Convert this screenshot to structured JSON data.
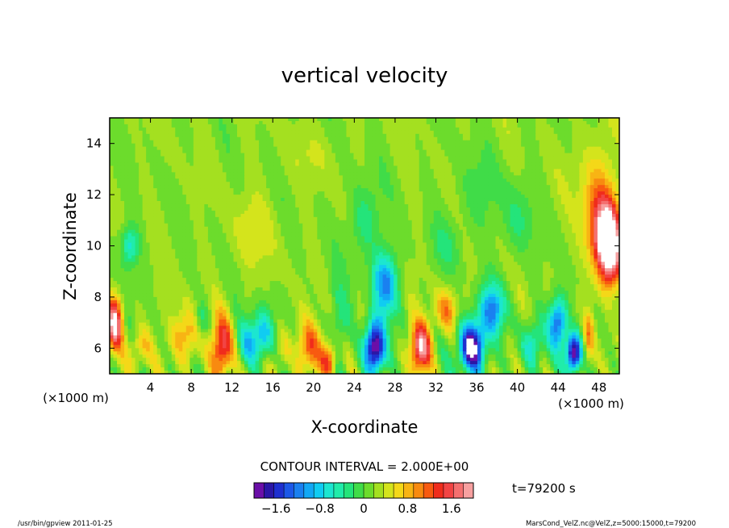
{
  "chart_data": {
    "type": "heatmap",
    "title": "vertical velocity",
    "xlabel": "X-coordinate",
    "ylabel": "Z-coordinate",
    "x_unit": "(×1000 m)",
    "y_unit": "(×1000 m)",
    "xlim": [
      0,
      50
    ],
    "ylim": [
      5,
      15
    ],
    "xticks": [
      4,
      8,
      12,
      16,
      20,
      24,
      28,
      32,
      36,
      40,
      44,
      48
    ],
    "yticks": [
      6,
      8,
      10,
      12,
      14
    ],
    "contour_interval_text": "CONTOUR INTERVAL = 2.000E+00",
    "time_text": "t=79200 s",
    "colorbar": {
      "range": [
        -2.0,
        2.0
      ],
      "ticks": [
        -1.6,
        -0.8,
        0,
        0.8,
        1.6
      ],
      "tick_labels": [
        "−1.6",
        "−0.8",
        "0",
        "0.8",
        "1.6"
      ],
      "colors": [
        "#6b0fa8",
        "#2b16a6",
        "#1e2fd0",
        "#1c58e8",
        "#1a80f0",
        "#12a8f5",
        "#10ccf2",
        "#1ce6d0",
        "#20ecaa",
        "#24e47a",
        "#40dc48",
        "#6cdc2c",
        "#a4e020",
        "#d4e41c",
        "#f4d818",
        "#f8b414",
        "#f88a10",
        "#f85a10",
        "#f02c1c",
        "#f24444",
        "#f47070",
        "#f7a0a0"
      ]
    },
    "field_features": [
      {
        "x": 49.0,
        "z": 10.0,
        "w": 2.5,
        "h": 3.0,
        "value": 2.4
      },
      {
        "x": 48.0,
        "z": 11.0,
        "w": 3.0,
        "h": 3.5,
        "value": 1.0
      },
      {
        "x": 47.5,
        "z": 13.0,
        "w": 4.0,
        "h": 3.0,
        "value": 0.3
      },
      {
        "x": 2.0,
        "z": 10.0,
        "w": 1.8,
        "h": 1.5,
        "value": -0.8
      },
      {
        "x": 0.5,
        "z": 7.0,
        "w": 1.5,
        "h": 2.0,
        "value": 1.8
      },
      {
        "x": 3.0,
        "z": 6.0,
        "w": 2.0,
        "h": 1.5,
        "value": 0.6
      },
      {
        "x": 7.5,
        "z": 6.5,
        "w": 3.0,
        "h": 2.0,
        "value": 0.8
      },
      {
        "x": 9.0,
        "z": 7.0,
        "w": 1.5,
        "h": 1.5,
        "value": -0.6
      },
      {
        "x": 11.0,
        "z": 6.0,
        "w": 2.0,
        "h": 2.5,
        "value": 1.4
      },
      {
        "x": 13.5,
        "z": 6.2,
        "w": 2.0,
        "h": 1.8,
        "value": -0.8
      },
      {
        "x": 15.0,
        "z": 6.5,
        "w": 2.0,
        "h": 2.0,
        "value": -1.1
      },
      {
        "x": 17.0,
        "z": 6.0,
        "w": 1.5,
        "h": 1.5,
        "value": 0.4
      },
      {
        "x": 19.5,
        "z": 6.0,
        "w": 2.5,
        "h": 2.0,
        "value": 1.0
      },
      {
        "x": 21.5,
        "z": 5.5,
        "w": 1.5,
        "h": 1.5,
        "value": 1.2
      },
      {
        "x": 22.5,
        "z": 7.0,
        "w": 2.0,
        "h": 3.0,
        "value": -0.5
      },
      {
        "x": 26.0,
        "z": 6.0,
        "w": 2.0,
        "h": 2.0,
        "value": -2.4
      },
      {
        "x": 27.0,
        "z": 8.5,
        "w": 2.5,
        "h": 2.5,
        "value": -1.3
      },
      {
        "x": 25.0,
        "z": 11.0,
        "w": 3.0,
        "h": 3.0,
        "value": -0.5
      },
      {
        "x": 30.5,
        "z": 6.0,
        "w": 2.0,
        "h": 2.0,
        "value": 1.8
      },
      {
        "x": 33.0,
        "z": 7.5,
        "w": 2.0,
        "h": 1.5,
        "value": 0.8
      },
      {
        "x": 35.5,
        "z": 6.0,
        "w": 2.5,
        "h": 2.0,
        "value": -2.4
      },
      {
        "x": 37.5,
        "z": 7.5,
        "w": 2.5,
        "h": 2.0,
        "value": -1.3
      },
      {
        "x": 41.5,
        "z": 6.2,
        "w": 2.0,
        "h": 1.8,
        "value": -0.8
      },
      {
        "x": 44.0,
        "z": 7.0,
        "w": 1.8,
        "h": 2.0,
        "value": -1.6
      },
      {
        "x": 45.5,
        "z": 5.8,
        "w": 1.5,
        "h": 1.5,
        "value": -2.4
      },
      {
        "x": 47.0,
        "z": 6.5,
        "w": 1.0,
        "h": 2.0,
        "value": 0.8
      },
      {
        "x": 36.0,
        "z": 12.0,
        "w": 4.0,
        "h": 3.0,
        "value": -0.3
      },
      {
        "x": 40.0,
        "z": 11.0,
        "w": 3.0,
        "h": 3.0,
        "value": -0.4
      },
      {
        "x": 14.0,
        "z": 10.5,
        "w": 4.0,
        "h": 3.0,
        "value": 0.3
      },
      {
        "x": 20.0,
        "z": 13.5,
        "w": 5.0,
        "h": 2.0,
        "value": 0.15
      },
      {
        "x": 33.0,
        "z": 10.0,
        "w": 3.0,
        "h": 2.0,
        "value": -0.3
      }
    ]
  },
  "footer": {
    "left": "/usr/bin/gpview   2011-01-25",
    "right": "MarsCond_VelZ.nc@VelZ,z=5000:15000,t=79200"
  }
}
